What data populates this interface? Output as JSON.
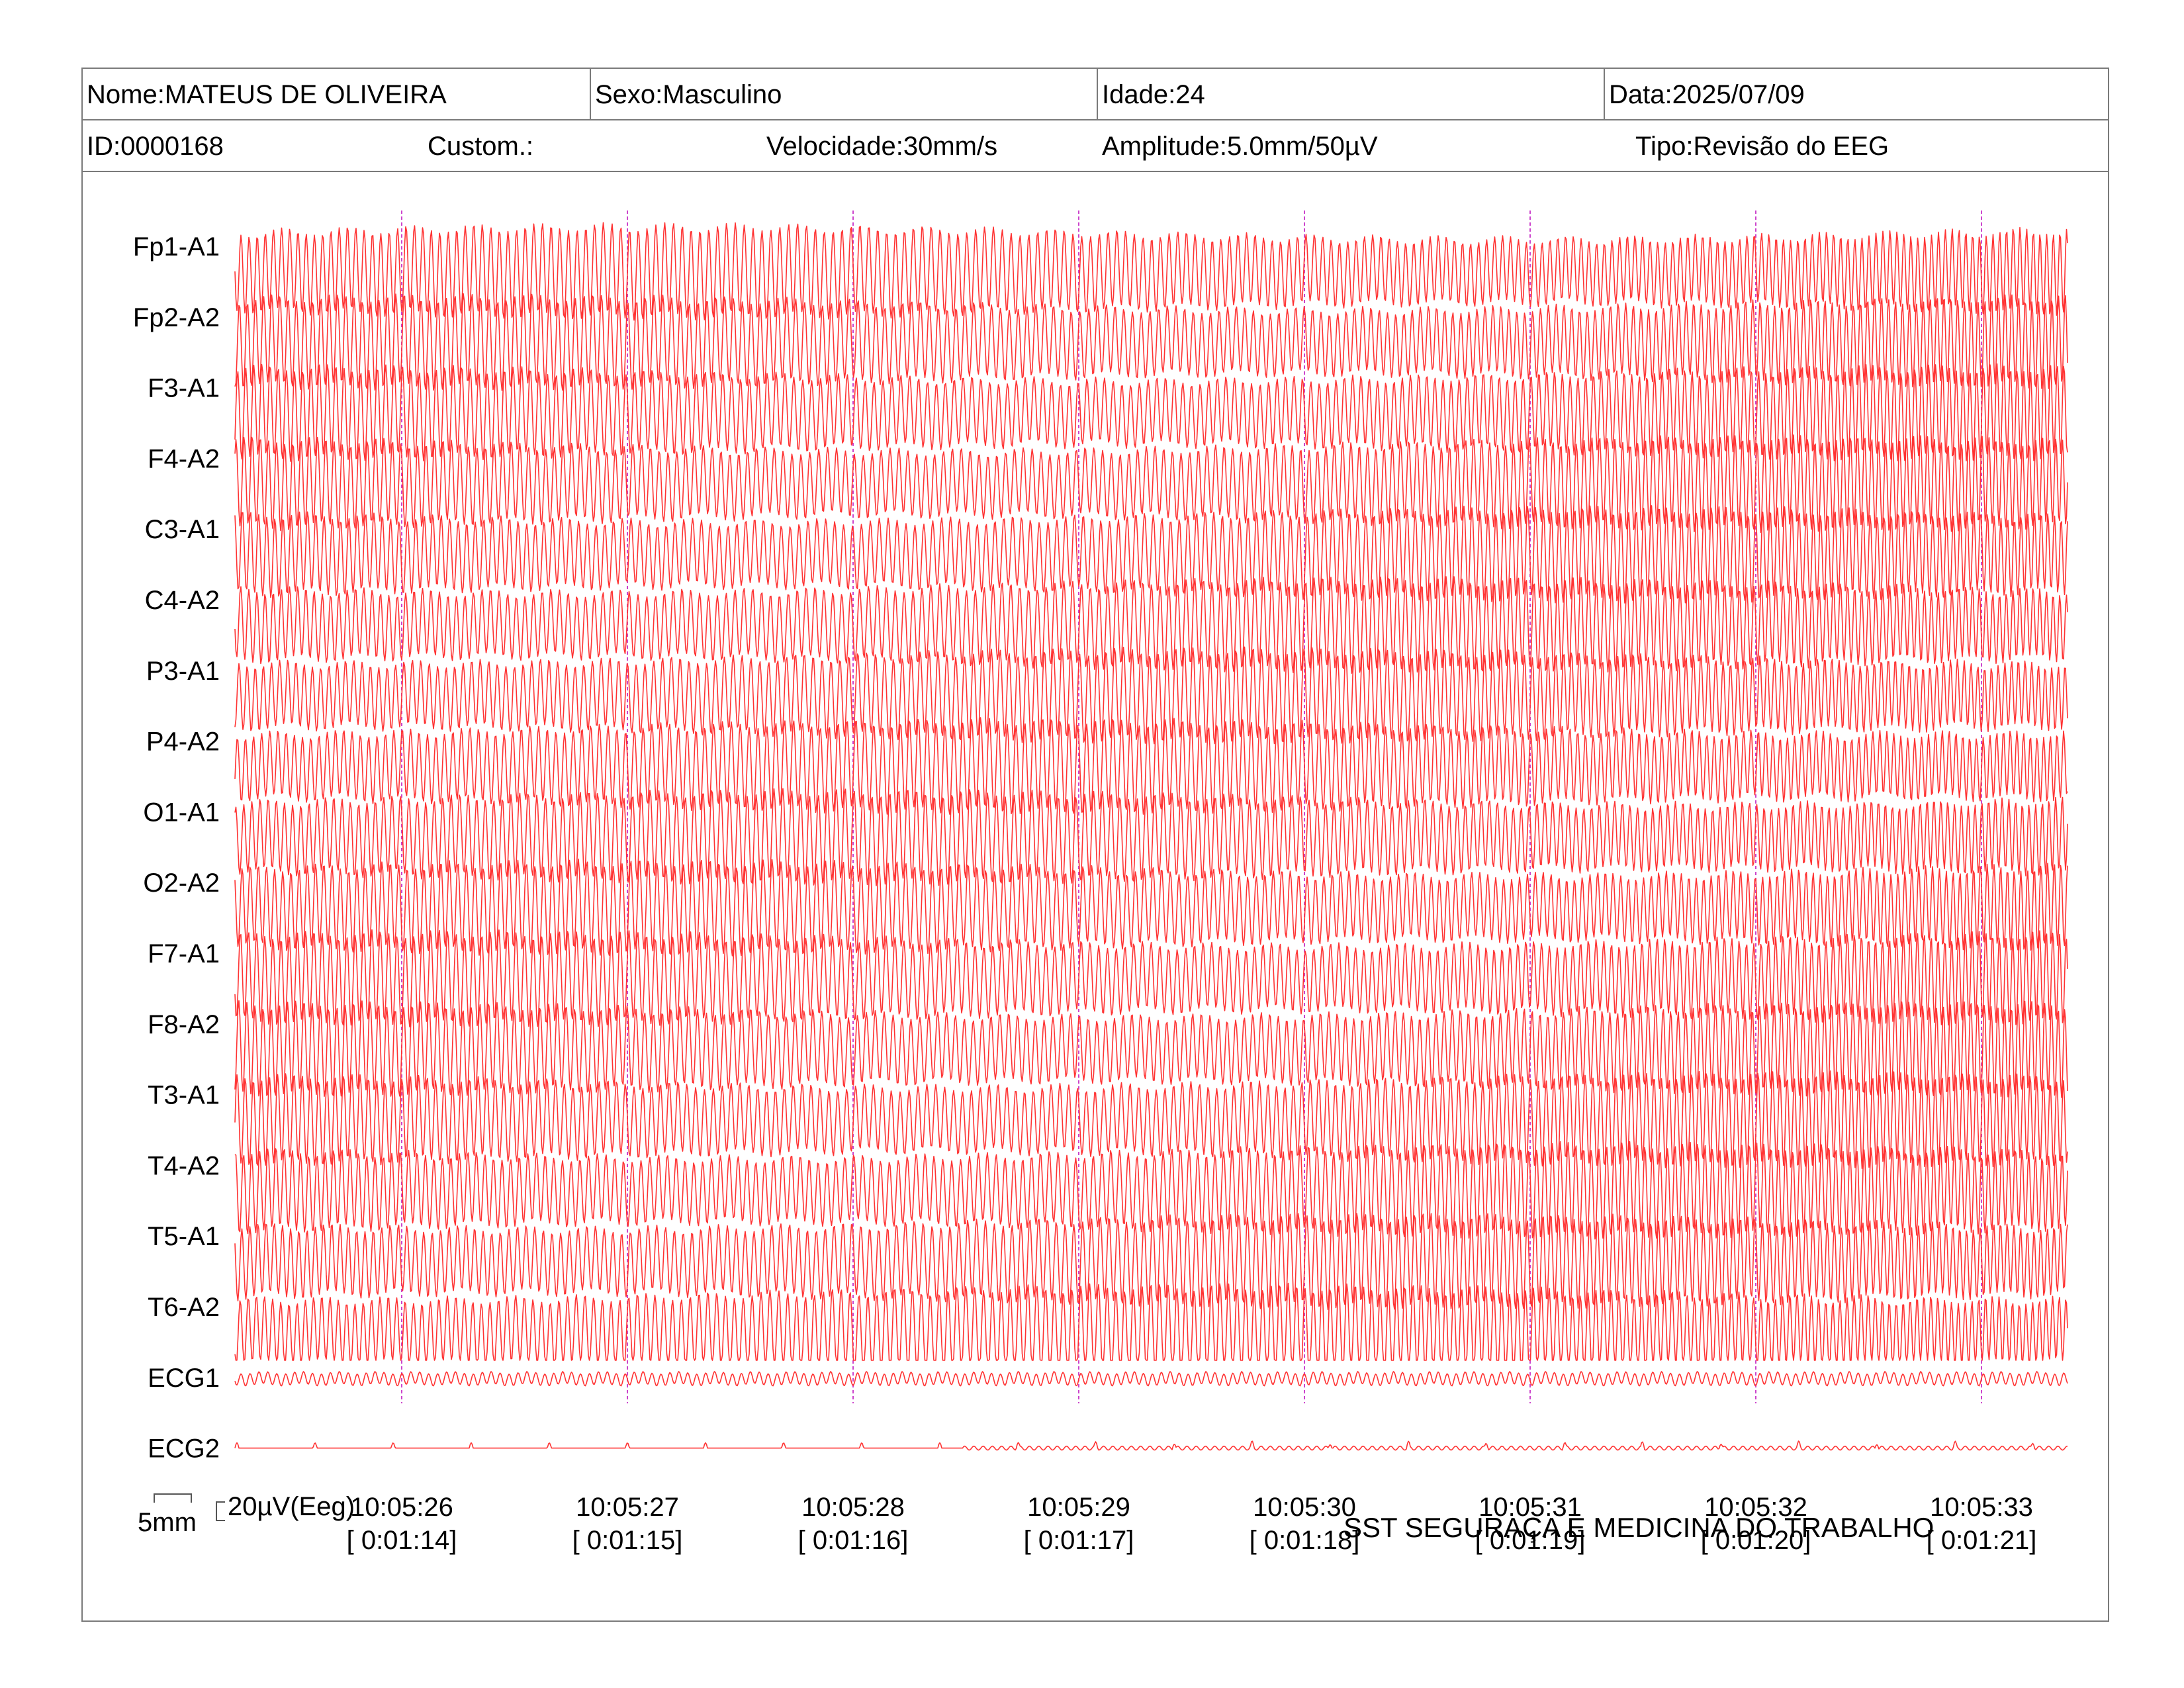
{
  "header": {
    "row1": [
      {
        "label": "Nome:MATEUS DE OLIVEIRA"
      },
      {
        "label": "Sexo:Masculino"
      },
      {
        "label": "Idade:24"
      },
      {
        "label": "Data:2025/07/09"
      }
    ],
    "row2": [
      {
        "label": "ID:0000168"
      },
      {
        "label": "Custom.:"
      },
      {
        "label": "Velocidade:30mm/s"
      },
      {
        "label": "Amplitude:5.0mm/50µV"
      },
      {
        "label": "Tipo:Revisão do EEG"
      }
    ]
  },
  "chart_data": {
    "type": "line",
    "trace_color": "#ff3333",
    "marker_color": "#cc44cc",
    "channels": [
      {
        "name": "Fp1-A1",
        "kind": "eeg"
      },
      {
        "name": "Fp2-A2",
        "kind": "eeg"
      },
      {
        "name": "F3-A1",
        "kind": "eeg"
      },
      {
        "name": "F4-A2",
        "kind": "eeg"
      },
      {
        "name": "C3-A1",
        "kind": "eeg"
      },
      {
        "name": "C4-A2",
        "kind": "eeg"
      },
      {
        "name": "P3-A1",
        "kind": "eeg"
      },
      {
        "name": "P4-A2",
        "kind": "eeg"
      },
      {
        "name": "O1-A1",
        "kind": "eeg"
      },
      {
        "name": "O2-A2",
        "kind": "eeg"
      },
      {
        "name": "F7-A1",
        "kind": "eeg"
      },
      {
        "name": "F8-A2",
        "kind": "eeg"
      },
      {
        "name": "T3-A1",
        "kind": "eeg"
      },
      {
        "name": "T4-A2",
        "kind": "eeg"
      },
      {
        "name": "T5-A1",
        "kind": "eeg"
      },
      {
        "name": "T6-A2",
        "kind": "eeg"
      },
      {
        "name": "ECG1",
        "kind": "ecg1"
      },
      {
        "name": "ECG2",
        "kind": "ecg2"
      }
    ],
    "time_markers": [
      {
        "clock": "10:05:26",
        "elapsed": "[ 0:01:14]"
      },
      {
        "clock": "10:05:27",
        "elapsed": "[ 0:01:15]"
      },
      {
        "clock": "10:05:28",
        "elapsed": "[ 0:01:16]"
      },
      {
        "clock": "10:05:29",
        "elapsed": "[ 0:01:17]"
      },
      {
        "clock": "10:05:30",
        "elapsed": "[ 0:01:18]"
      },
      {
        "clock": "10:05:31",
        "elapsed": "[ 0:01:19]"
      },
      {
        "clock": "10:05:32",
        "elapsed": "[ 0:01:20]"
      },
      {
        "clock": "10:05:33",
        "elapsed": "[ 0:01:21]"
      }
    ]
  },
  "scale": {
    "time": "5mm",
    "amplitude": "20µV(Eeg)"
  },
  "footer": "SST SEGURAÇA E MEDICINA DO TRABALHO"
}
